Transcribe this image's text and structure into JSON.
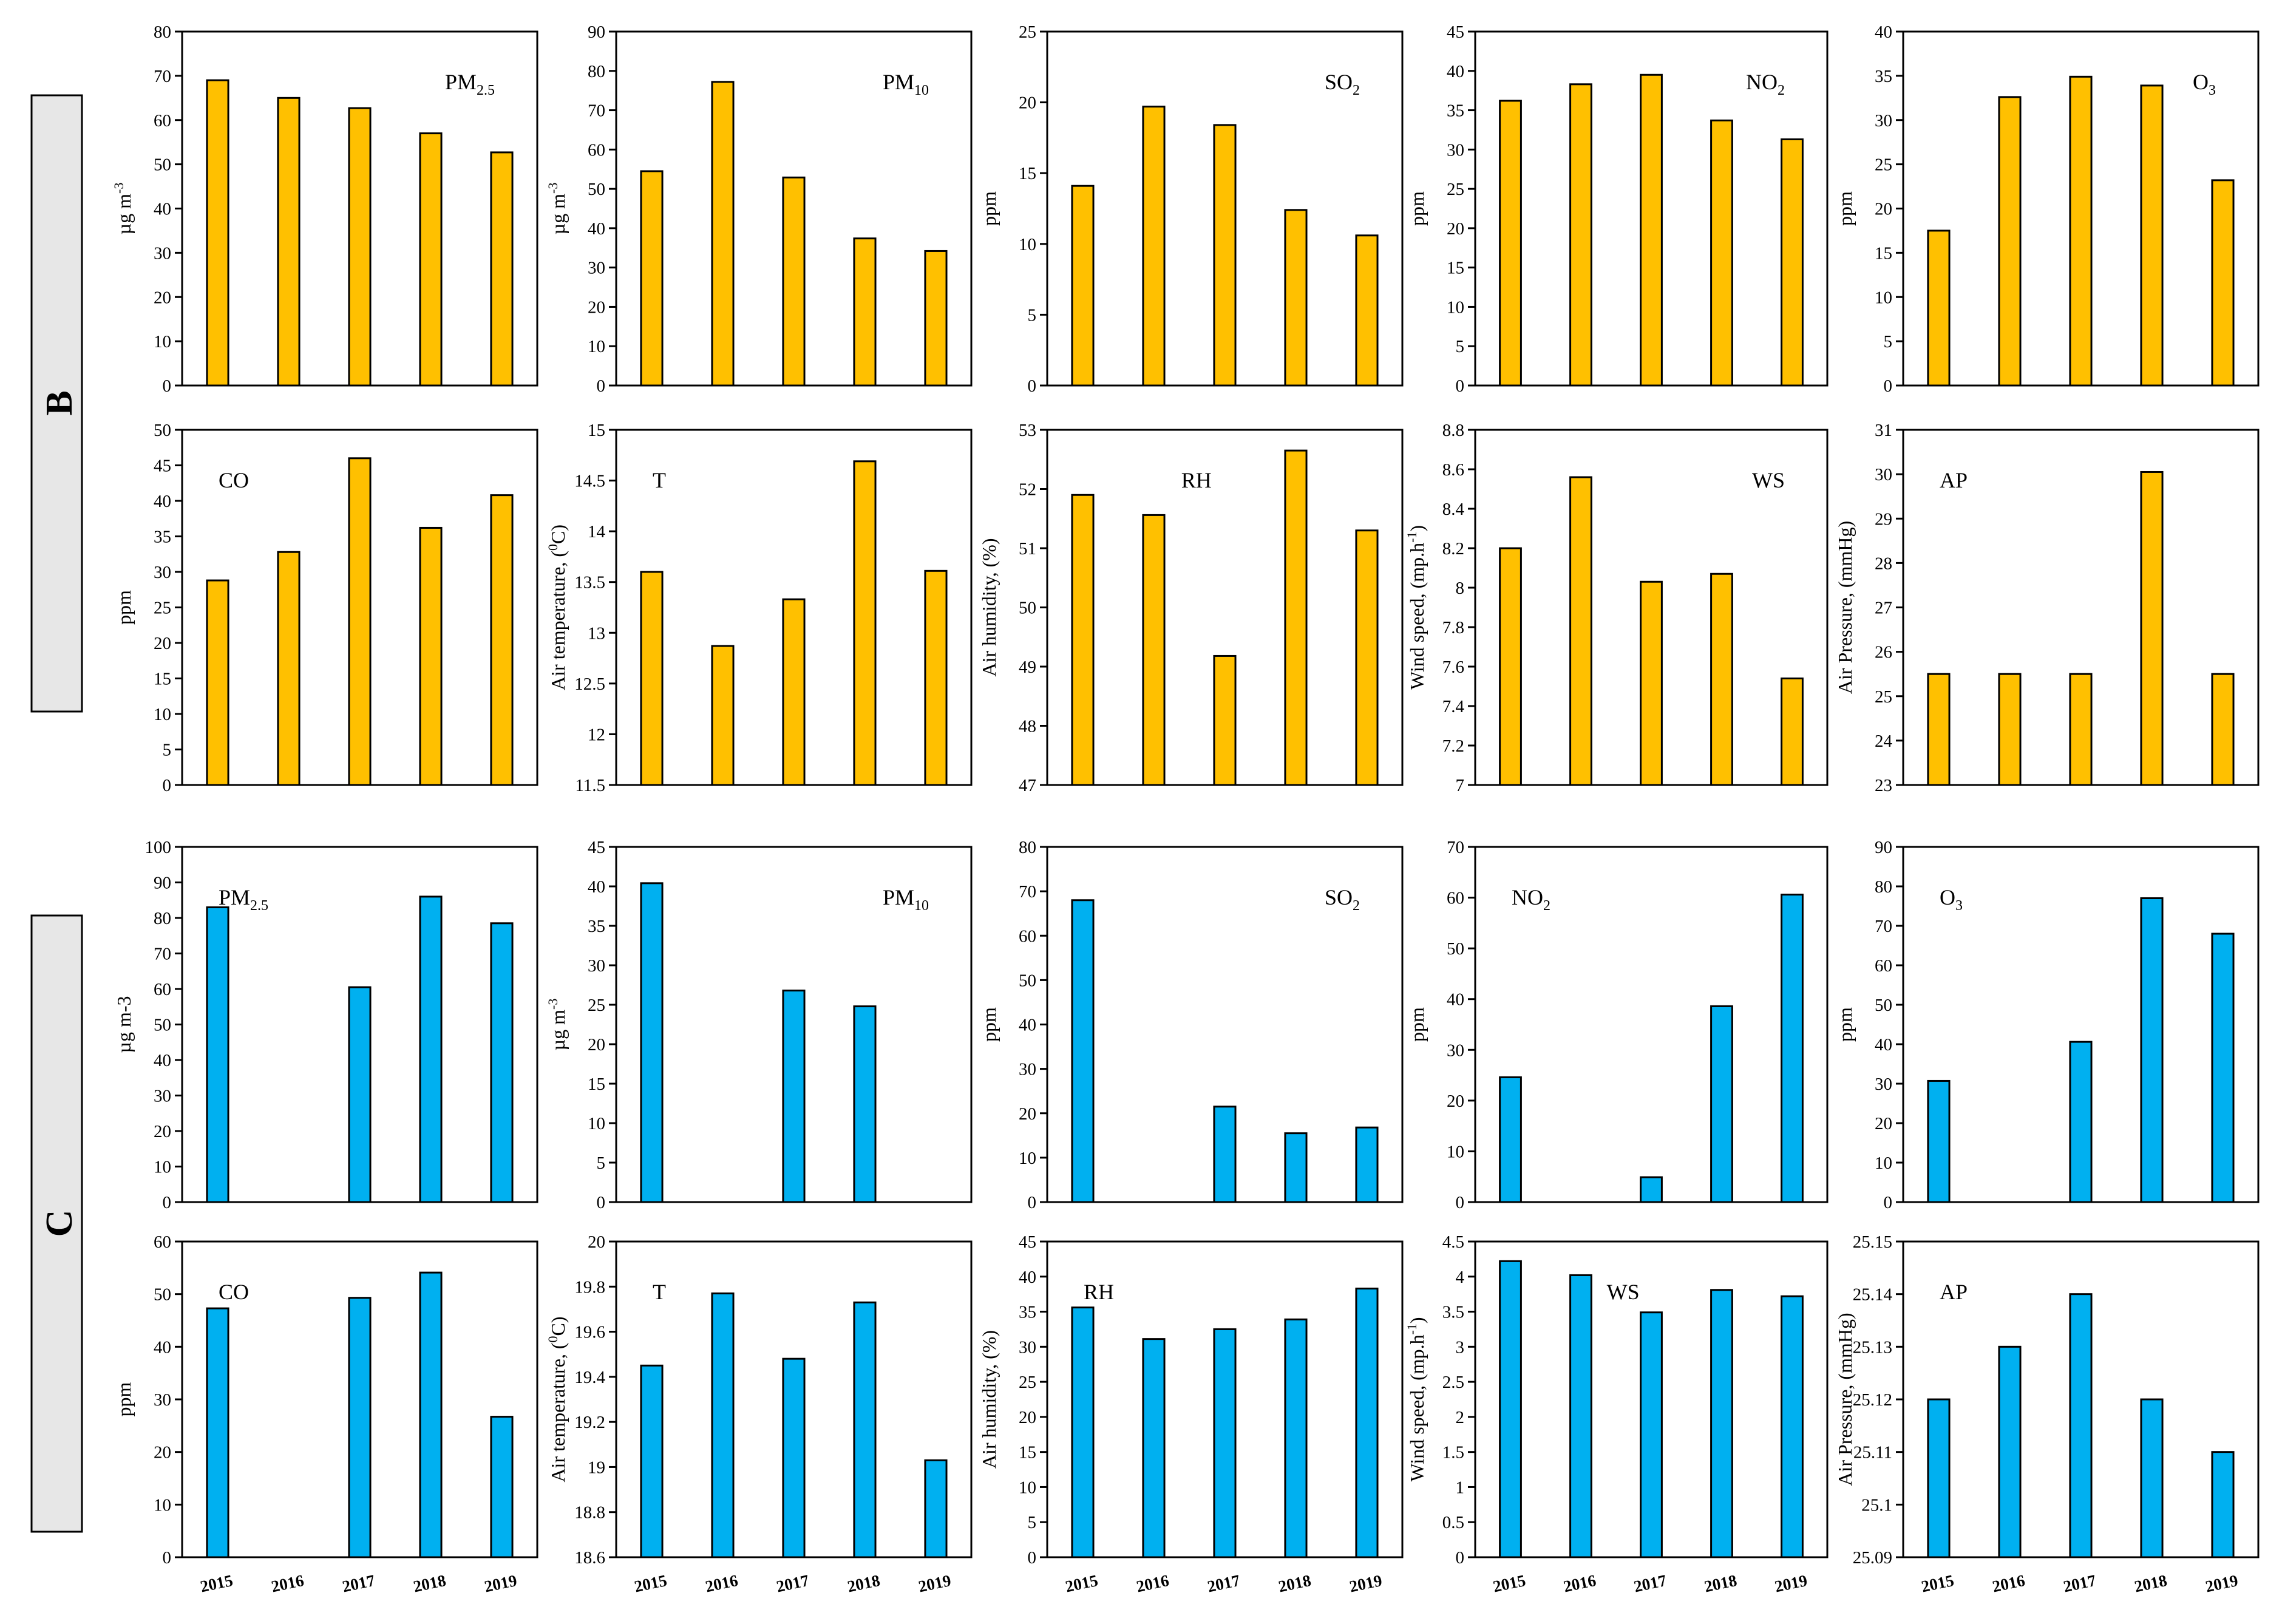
{
  "section_labels": [
    "B",
    "C"
  ],
  "colors": {
    "section_B": "#FFC000",
    "section_C": "#00B0F0",
    "outline": "#000000",
    "section_box": "#e7e7e7"
  },
  "chart_data": [
    {
      "type": "bar",
      "section": "B",
      "title": "PM",
      "title_sub": "2.5",
      "ylabel": "µg m",
      "ylabel_sup": "-3",
      "ylim": [
        0,
        80
      ],
      "yticks": [
        "0",
        "10",
        "20",
        "30",
        "40",
        "50",
        "60",
        "70",
        "80"
      ],
      "categories": [
        "2015",
        "2016",
        "2017",
        "2018",
        "2019"
      ],
      "values": [
        69,
        65,
        62.7,
        57,
        52.7
      ],
      "show_xlabels": false
    },
    {
      "type": "bar",
      "section": "B",
      "title": "PM",
      "title_sub": "10",
      "ylabel": "µg m",
      "ylabel_sup": "-3",
      "ylim": [
        0,
        90
      ],
      "yticks": [
        "0",
        "10",
        "20",
        "30",
        "40",
        "50",
        "60",
        "70",
        "80",
        "90"
      ],
      "categories": [
        "2015",
        "2016",
        "2017",
        "2018",
        "2019"
      ],
      "values": [
        54.5,
        77.2,
        52.9,
        37.4,
        34.2
      ],
      "show_xlabels": false
    },
    {
      "type": "bar",
      "section": "B",
      "title": "SO",
      "title_sub": "2",
      "ylabel": "ppm",
      "ylim": [
        0,
        25
      ],
      "yticks": [
        "0",
        "5",
        "10",
        "15",
        "20",
        "25"
      ],
      "categories": [
        "2015",
        "2016",
        "2017",
        "2018",
        "2019"
      ],
      "values": [
        14.1,
        19.7,
        18.4,
        12.4,
        10.6
      ],
      "show_xlabels": false
    },
    {
      "type": "bar",
      "section": "B",
      "title": "NO",
      "title_sub": "2",
      "ylabel": "ppm",
      "ylim": [
        0,
        45
      ],
      "yticks": [
        "0",
        "5",
        "10",
        "15",
        "20",
        "25",
        "30",
        "35",
        "40",
        "45"
      ],
      "categories": [
        "2015",
        "2016",
        "2017",
        "2018",
        "2019"
      ],
      "values": [
        36.2,
        38.3,
        39.5,
        33.7,
        31.3
      ],
      "show_xlabels": false
    },
    {
      "type": "bar",
      "section": "B",
      "title": "O",
      "title_sub": "3",
      "ylabel": "ppm",
      "ylim": [
        0,
        40
      ],
      "yticks": [
        "0",
        "5",
        "10",
        "15",
        "20",
        "25",
        "30",
        "35",
        "40"
      ],
      "categories": [
        "2015",
        "2016",
        "2017",
        "2018",
        "2019"
      ],
      "values": [
        17.5,
        32.6,
        34.9,
        33.9,
        23.2
      ],
      "show_xlabels": false
    },
    {
      "type": "bar",
      "section": "B",
      "title": "CO",
      "ylabel": "ppm",
      "ylim": [
        0,
        50
      ],
      "yticks": [
        "0",
        "5",
        "10",
        "15",
        "20",
        "25",
        "30",
        "35",
        "40",
        "45",
        "50"
      ],
      "categories": [
        "2015",
        "2016",
        "2017",
        "2018",
        "2019"
      ],
      "values": [
        28.8,
        32.8,
        46,
        36.2,
        40.8
      ],
      "show_xlabels": false
    },
    {
      "type": "bar",
      "section": "B",
      "title": "T",
      "ylabel": "Air temperature, (",
      "ylabel_sup": "0",
      "ylabel_tail": "C)",
      "ylim": [
        11.5,
        15
      ],
      "yticks": [
        "11.5",
        "12",
        "12.5",
        "13",
        "13.5",
        "14",
        "14.5",
        "15"
      ],
      "categories": [
        "2015",
        "2016",
        "2017",
        "2018",
        "2019"
      ],
      "values": [
        13.6,
        12.87,
        13.33,
        14.69,
        13.61
      ],
      "show_xlabels": false
    },
    {
      "type": "bar",
      "section": "B",
      "title": "RH",
      "ylabel": "Air humidity, (%)",
      "ylim": [
        47,
        53
      ],
      "yticks": [
        "47",
        "48",
        "49",
        "50",
        "51",
        "52",
        "53"
      ],
      "categories": [
        "2015",
        "2016",
        "2017",
        "2018",
        "2019"
      ],
      "values": [
        51.9,
        51.56,
        49.18,
        52.65,
        51.3
      ],
      "show_xlabels": false
    },
    {
      "type": "bar",
      "section": "B",
      "title": "WS",
      "ylabel": "Wind speed, (mp.h",
      "ylabel_sup": "-1",
      "ylabel_tail": ")",
      "ylim": [
        7,
        8.8
      ],
      "yticks": [
        "7",
        "7.2",
        "7.4",
        "7.6",
        "7.8",
        "8",
        "8.2",
        "8.4",
        "8.6",
        "8.8"
      ],
      "categories": [
        "2015",
        "2016",
        "2017",
        "2018",
        "2019"
      ],
      "values": [
        8.2,
        8.56,
        8.03,
        8.07,
        7.54
      ],
      "show_xlabels": false
    },
    {
      "type": "bar",
      "section": "B",
      "title": "AP",
      "ylabel": "Air Pressure, (mmHg)",
      "ylim": [
        23,
        31
      ],
      "yticks": [
        "23",
        "24",
        "25",
        "26",
        "27",
        "28",
        "29",
        "30",
        "31"
      ],
      "categories": [
        "2015",
        "2016",
        "2017",
        "2018",
        "2019"
      ],
      "values": [
        25.5,
        25.5,
        25.5,
        30.05,
        25.5
      ],
      "show_xlabels": false
    },
    {
      "type": "bar",
      "section": "C",
      "title": "PM",
      "title_sub": "2.5",
      "ylabel": "µg m-3",
      "ylim": [
        0,
        100
      ],
      "yticks": [
        "0",
        "10",
        "20",
        "30",
        "40",
        "50",
        "60",
        "70",
        "80",
        "90",
        "100"
      ],
      "categories": [
        "2015",
        "2016",
        "2017",
        "2018",
        "2019"
      ],
      "values": [
        83,
        0,
        60.5,
        86,
        78.5
      ],
      "show_xlabels": false
    },
    {
      "type": "bar",
      "section": "C",
      "title": "PM",
      "title_sub": "10",
      "ylabel": "µg m",
      "ylabel_sup": "-3",
      "ylim": [
        0,
        45
      ],
      "yticks": [
        "0",
        "5",
        "10",
        "15",
        "20",
        "25",
        "30",
        "35",
        "40",
        "45"
      ],
      "categories": [
        "2015",
        "2016",
        "2017",
        "2018",
        "2019"
      ],
      "values": [
        40.4,
        0,
        26.8,
        24.8,
        0
      ],
      "show_xlabels": false
    },
    {
      "type": "bar",
      "section": "C",
      "title": "SO",
      "title_sub": "2",
      "ylabel": "ppm",
      "ylim": [
        0,
        80
      ],
      "yticks": [
        "0",
        "10",
        "20",
        "30",
        "40",
        "50",
        "60",
        "70",
        "80"
      ],
      "categories": [
        "2015",
        "2016",
        "2017",
        "2018",
        "2019"
      ],
      "values": [
        68,
        0,
        21.5,
        15.5,
        16.8
      ],
      "show_xlabels": false
    },
    {
      "type": "bar",
      "section": "C",
      "title": "NO",
      "title_sub": "2",
      "ylabel": "ppm",
      "ylim": [
        0,
        70
      ],
      "yticks": [
        "0",
        "10",
        "20",
        "30",
        "40",
        "50",
        "60",
        "70"
      ],
      "categories": [
        "2015",
        "2016",
        "2017",
        "2018",
        "2019"
      ],
      "values": [
        24.6,
        0,
        4.9,
        38.6,
        60.6
      ],
      "show_xlabels": false
    },
    {
      "type": "bar",
      "section": "C",
      "title": "O",
      "title_sub": "3",
      "ylabel": "ppm",
      "ylim": [
        0,
        90
      ],
      "yticks": [
        "0",
        "10",
        "20",
        "30",
        "40",
        "50",
        "60",
        "70",
        "80",
        "90"
      ],
      "categories": [
        "2015",
        "2016",
        "2017",
        "2018",
        "2019"
      ],
      "values": [
        30.7,
        0,
        40.6,
        77,
        68
      ],
      "show_xlabels": false
    },
    {
      "type": "bar",
      "section": "C",
      "title": "CO",
      "ylabel": "ppm",
      "ylim": [
        0,
        60
      ],
      "yticks": [
        "0",
        "10",
        "20",
        "30",
        "40",
        "50",
        "60"
      ],
      "categories": [
        "2015",
        "2016",
        "2017",
        "2018",
        "2019"
      ],
      "values": [
        47.3,
        0,
        49.3,
        54.1,
        26.7
      ],
      "show_xlabels": true
    },
    {
      "type": "bar",
      "section": "C",
      "title": "T",
      "ylabel": "Air temperature, (",
      "ylabel_sup": "0",
      "ylabel_tail": "C)",
      "ylim": [
        18.6,
        20
      ],
      "yticks": [
        "18.6",
        "18.8",
        "19",
        "19.2",
        "19.4",
        "19.6",
        "19.8",
        "20"
      ],
      "categories": [
        "2015",
        "2016",
        "2017",
        "2018",
        "2019"
      ],
      "values": [
        19.45,
        19.77,
        19.48,
        19.73,
        19.03
      ],
      "show_xlabels": true
    },
    {
      "type": "bar",
      "section": "C",
      "title": "RH",
      "ylabel": "Air humidity, (%)",
      "ylim": [
        0,
        45
      ],
      "yticks": [
        "0",
        "5",
        "10",
        "15",
        "20",
        "25",
        "30",
        "35",
        "40",
        "45"
      ],
      "categories": [
        "2015",
        "2016",
        "2017",
        "2018",
        "2019"
      ],
      "values": [
        35.6,
        31.1,
        32.5,
        33.9,
        38.3
      ],
      "show_xlabels": true
    },
    {
      "type": "bar",
      "section": "C",
      "title": "WS",
      "ylabel": "Wind speed, (mp.h",
      "ylabel_sup": "-1",
      "ylabel_tail": ")",
      "ylim": [
        0,
        4.5
      ],
      "yticks": [
        "0",
        "0.5",
        "1",
        "1.5",
        "2",
        "2.5",
        "3",
        "3.5",
        "4",
        "4.5"
      ],
      "categories": [
        "2015",
        "2016",
        "2017",
        "2018",
        "2019"
      ],
      "values": [
        4.22,
        4.02,
        3.49,
        3.81,
        3.72
      ],
      "show_xlabels": true
    },
    {
      "type": "bar",
      "section": "C",
      "title": "AP",
      "ylabel": "Air Pressure, (mmHg)",
      "ylim": [
        25.09,
        25.15
      ],
      "yticks": [
        "25.09",
        "25.1",
        "25.11",
        "25.12",
        "25.13",
        "25.14",
        "25.15"
      ],
      "categories": [
        "2015",
        "2016",
        "2017",
        "2018",
        "2019"
      ],
      "values": [
        25.12,
        25.13,
        25.14,
        25.12,
        25.11
      ],
      "show_xlabels": true
    }
  ]
}
